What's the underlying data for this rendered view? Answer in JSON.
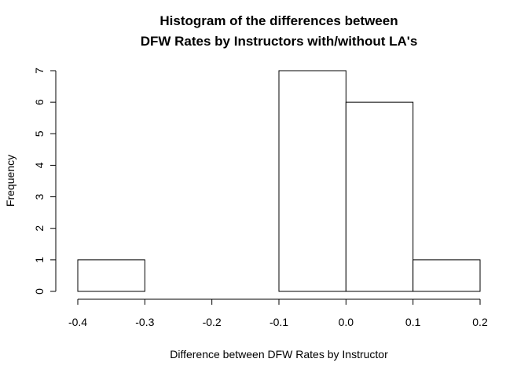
{
  "chart_data": {
    "type": "bar",
    "subtype": "histogram",
    "title_lines": [
      "Histogram of the differences between",
      "DFW Rates by Instructors with/without LA's"
    ],
    "xlabel": "Difference between DFW Rates by Instructor",
    "ylabel": "Frequency",
    "bins": [
      {
        "start": -0.4,
        "end": -0.3,
        "count": 1
      },
      {
        "start": -0.3,
        "end": -0.2,
        "count": 0
      },
      {
        "start": -0.2,
        "end": -0.1,
        "count": 0
      },
      {
        "start": -0.1,
        "end": 0.0,
        "count": 7
      },
      {
        "start": 0.0,
        "end": 0.1,
        "count": 6
      },
      {
        "start": 0.1,
        "end": 0.2,
        "count": 1
      }
    ],
    "xlim": [
      -0.4,
      0.2
    ],
    "ylim": [
      0,
      7
    ],
    "x_ticks": [
      -0.4,
      -0.3,
      -0.2,
      -0.1,
      0.0,
      0.1,
      0.2
    ],
    "x_tick_labels": [
      "-0.4",
      "-0.3",
      "-0.2",
      "-0.1",
      "0.0",
      "0.1",
      "0.2"
    ],
    "y_ticks": [
      0,
      1,
      2,
      3,
      4,
      5,
      6,
      7
    ],
    "y_tick_labels": [
      "0",
      "1",
      "2",
      "3",
      "4",
      "5",
      "6",
      "7"
    ],
    "bar_fill": "#ffffff",
    "bar_stroke": "#000000",
    "grid": false,
    "legend": "none"
  }
}
